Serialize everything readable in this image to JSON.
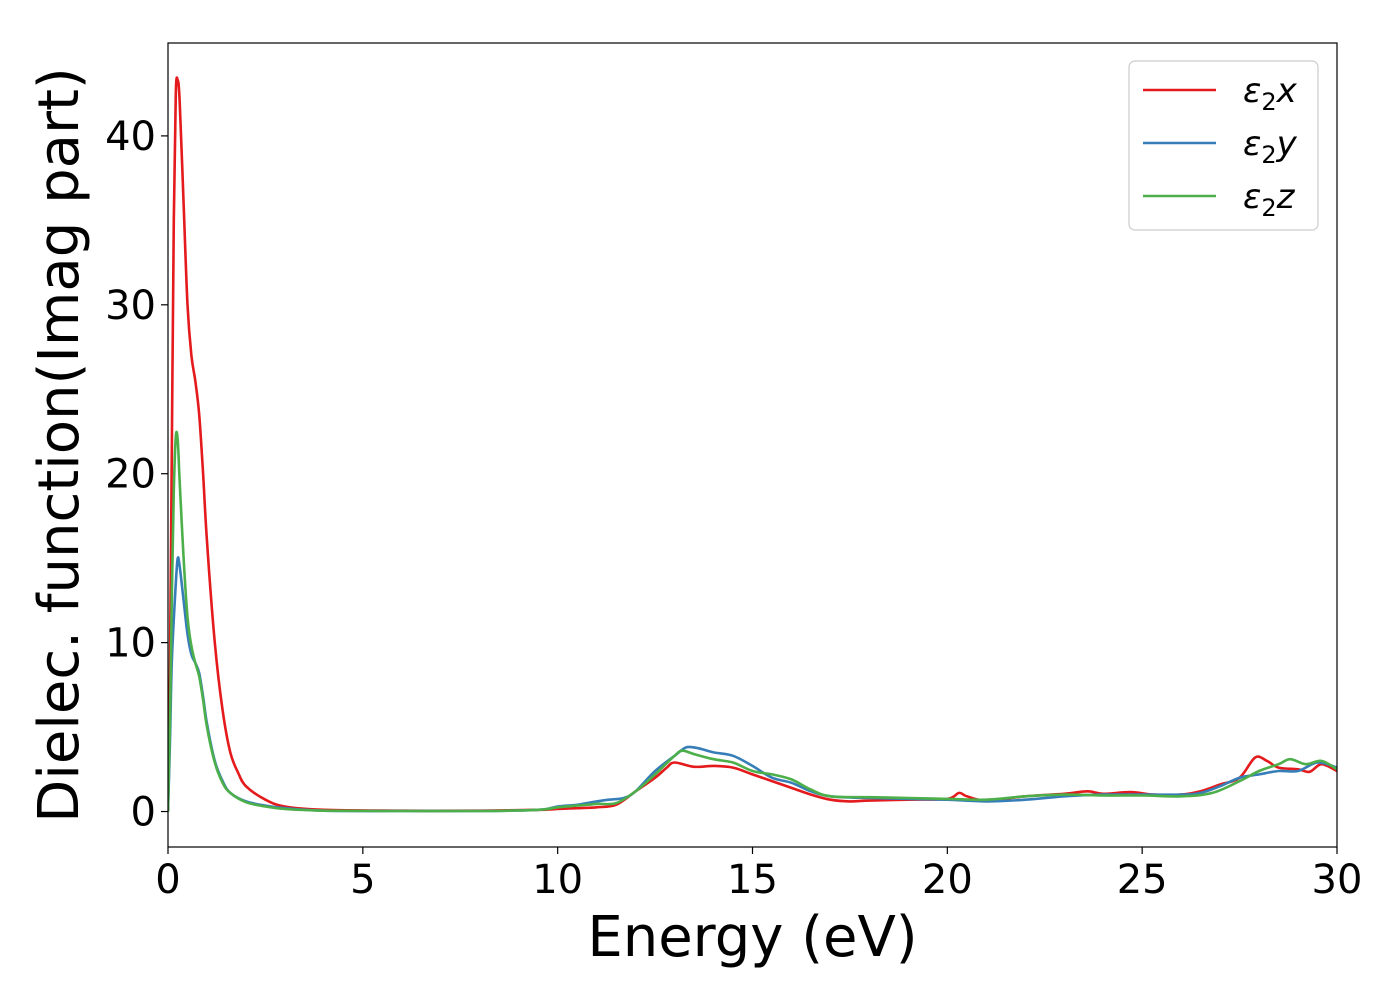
{
  "chart_data": {
    "type": "line",
    "title": "",
    "xlabel": "Energy (eV)",
    "ylabel": "Dielec. function(Imag part)",
    "xlim": [
      0,
      30
    ],
    "ylim": [
      -2.1,
      45.5
    ],
    "xticks": [
      0,
      5,
      10,
      15,
      20,
      25,
      30
    ],
    "yticks": [
      0,
      10,
      20,
      30,
      40
    ],
    "grid": false,
    "legend_position": "top-right",
    "series": [
      {
        "name": "ε₂x",
        "legend_base": "ε",
        "legend_sub": "2",
        "legend_suffix": "x",
        "color": "#e41a1c",
        "points": [
          [
            0,
            0
          ],
          [
            0.05,
            8
          ],
          [
            0.1,
            22
          ],
          [
            0.15,
            35
          ],
          [
            0.2,
            42.5
          ],
          [
            0.25,
            43.3
          ],
          [
            0.3,
            42
          ],
          [
            0.4,
            36
          ],
          [
            0.5,
            30
          ],
          [
            0.6,
            27
          ],
          [
            0.7,
            25.5
          ],
          [
            0.8,
            23.5
          ],
          [
            0.9,
            20
          ],
          [
            1.0,
            16
          ],
          [
            1.2,
            10
          ],
          [
            1.4,
            6
          ],
          [
            1.6,
            3.5
          ],
          [
            1.8,
            2.3
          ],
          [
            2.0,
            1.5
          ],
          [
            2.5,
            0.7
          ],
          [
            3.0,
            0.3
          ],
          [
            4,
            0.1
          ],
          [
            6,
            0.05
          ],
          [
            8,
            0.05
          ],
          [
            9.5,
            0.1
          ],
          [
            10,
            0.15
          ],
          [
            10.5,
            0.2
          ],
          [
            11,
            0.25
          ],
          [
            11.5,
            0.4
          ],
          [
            12,
            1.2
          ],
          [
            12.5,
            2.0
          ],
          [
            12.8,
            2.6
          ],
          [
            13.0,
            2.9
          ],
          [
            13.5,
            2.65
          ],
          [
            14,
            2.7
          ],
          [
            14.5,
            2.6
          ],
          [
            15,
            2.2
          ],
          [
            15.5,
            1.8
          ],
          [
            16,
            1.4
          ],
          [
            16.5,
            1.0
          ],
          [
            17,
            0.7
          ],
          [
            17.5,
            0.6
          ],
          [
            18,
            0.65
          ],
          [
            19,
            0.7
          ],
          [
            20,
            0.75
          ],
          [
            20.3,
            1.1
          ],
          [
            20.5,
            0.9
          ],
          [
            21,
            0.65
          ],
          [
            22,
            0.9
          ],
          [
            23,
            1.05
          ],
          [
            23.6,
            1.2
          ],
          [
            24,
            1.05
          ],
          [
            24.7,
            1.15
          ],
          [
            25.3,
            1.0
          ],
          [
            26,
            1.0
          ],
          [
            26.5,
            1.2
          ],
          [
            27,
            1.6
          ],
          [
            27.5,
            2.0
          ],
          [
            27.9,
            3.2
          ],
          [
            28.2,
            3.0
          ],
          [
            28.5,
            2.6
          ],
          [
            29,
            2.5
          ],
          [
            29.3,
            2.35
          ],
          [
            29.6,
            2.8
          ],
          [
            30,
            2.4
          ]
        ]
      },
      {
        "name": "ε₂y",
        "legend_base": "ε",
        "legend_sub": "2",
        "legend_suffix": "y",
        "color": "#377eb8",
        "points": [
          [
            0,
            0
          ],
          [
            0.05,
            4
          ],
          [
            0.1,
            9
          ],
          [
            0.2,
            13.5
          ],
          [
            0.25,
            15
          ],
          [
            0.3,
            14.5
          ],
          [
            0.4,
            12.5
          ],
          [
            0.5,
            10.5
          ],
          [
            0.6,
            9.3
          ],
          [
            0.7,
            8.8
          ],
          [
            0.8,
            8.2
          ],
          [
            0.9,
            6.8
          ],
          [
            1.0,
            5.2
          ],
          [
            1.2,
            3.0
          ],
          [
            1.4,
            1.8
          ],
          [
            1.6,
            1.1
          ],
          [
            2.0,
            0.6
          ],
          [
            2.5,
            0.35
          ],
          [
            3,
            0.2
          ],
          [
            4,
            0.05
          ],
          [
            6,
            0.03
          ],
          [
            8,
            0.03
          ],
          [
            9.5,
            0.1
          ],
          [
            10,
            0.3
          ],
          [
            10.5,
            0.4
          ],
          [
            11,
            0.6
          ],
          [
            11.3,
            0.7
          ],
          [
            11.7,
            0.8
          ],
          [
            12,
            1.2
          ],
          [
            12.5,
            2.4
          ],
          [
            13,
            3.3
          ],
          [
            13.3,
            3.8
          ],
          [
            13.6,
            3.75
          ],
          [
            14,
            3.5
          ],
          [
            14.5,
            3.3
          ],
          [
            15,
            2.7
          ],
          [
            15.5,
            2.0
          ],
          [
            16,
            1.7
          ],
          [
            16.5,
            1.2
          ],
          [
            17,
            0.9
          ],
          [
            18,
            0.8
          ],
          [
            19,
            0.75
          ],
          [
            20,
            0.7
          ],
          [
            21,
            0.6
          ],
          [
            22,
            0.7
          ],
          [
            23,
            0.9
          ],
          [
            24,
            1.0
          ],
          [
            25,
            1.0
          ],
          [
            26,
            1.0
          ],
          [
            26.5,
            1.1
          ],
          [
            27,
            1.5
          ],
          [
            27.5,
            2.0
          ],
          [
            28,
            2.2
          ],
          [
            28.5,
            2.4
          ],
          [
            29,
            2.4
          ],
          [
            29.5,
            2.9
          ],
          [
            30,
            2.6
          ]
        ]
      },
      {
        "name": "ε₂z",
        "legend_base": "ε",
        "legend_sub": "2",
        "legend_suffix": "z",
        "color": "#4daf4a",
        "points": [
          [
            0,
            0
          ],
          [
            0.05,
            5
          ],
          [
            0.1,
            13
          ],
          [
            0.15,
            19
          ],
          [
            0.2,
            22.2
          ],
          [
            0.25,
            22
          ],
          [
            0.3,
            19.5
          ],
          [
            0.4,
            15
          ],
          [
            0.5,
            11.5
          ],
          [
            0.6,
            9.8
          ],
          [
            0.7,
            8.8
          ],
          [
            0.8,
            8.0
          ],
          [
            0.9,
            6.6
          ],
          [
            1.0,
            5.0
          ],
          [
            1.2,
            2.9
          ],
          [
            1.4,
            1.7
          ],
          [
            1.6,
            1.1
          ],
          [
            2.0,
            0.55
          ],
          [
            2.5,
            0.3
          ],
          [
            3,
            0.15
          ],
          [
            4,
            0.05
          ],
          [
            6,
            0.03
          ],
          [
            8,
            0.03
          ],
          [
            9.5,
            0.1
          ],
          [
            10,
            0.25
          ],
          [
            10.5,
            0.35
          ],
          [
            11,
            0.45
          ],
          [
            11.5,
            0.5
          ],
          [
            12,
            1.2
          ],
          [
            12.5,
            2.2
          ],
          [
            13,
            3.3
          ],
          [
            13.2,
            3.6
          ],
          [
            13.5,
            3.4
          ],
          [
            14,
            3.1
          ],
          [
            14.5,
            2.9
          ],
          [
            15,
            2.4
          ],
          [
            15.5,
            2.2
          ],
          [
            16,
            1.9
          ],
          [
            16.5,
            1.3
          ],
          [
            17,
            0.9
          ],
          [
            18,
            0.85
          ],
          [
            19,
            0.8
          ],
          [
            20,
            0.75
          ],
          [
            21,
            0.7
          ],
          [
            22,
            0.9
          ],
          [
            23,
            1.0
          ],
          [
            24,
            0.95
          ],
          [
            25,
            0.95
          ],
          [
            26,
            0.9
          ],
          [
            26.8,
            1.1
          ],
          [
            27.5,
            1.8
          ],
          [
            28,
            2.4
          ],
          [
            28.5,
            2.8
          ],
          [
            28.8,
            3.1
          ],
          [
            29.2,
            2.8
          ],
          [
            29.6,
            3.0
          ],
          [
            30,
            2.5
          ]
        ]
      }
    ]
  }
}
